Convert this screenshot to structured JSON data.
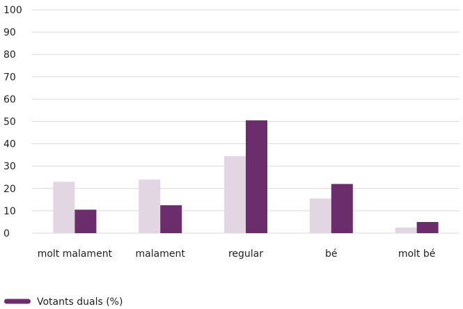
{
  "chart_data": {
    "type": "bar",
    "categories": [
      "molt malament",
      "malament",
      "regular",
      "bé",
      "molt bé"
    ],
    "series": [
      {
        "values": [
          23,
          24,
          34.5,
          15.5,
          2.5
        ],
        "color": "#e2d6e2"
      },
      {
        "name": "Votants duals (%)",
        "values": [
          10.5,
          12.5,
          50.5,
          22,
          5
        ],
        "color": "#6b2d6b"
      }
    ],
    "yticks": [
      0,
      10,
      20,
      30,
      40,
      50,
      60,
      70,
      80,
      90,
      100
    ],
    "ylim": [
      0,
      100
    ],
    "grid": true,
    "legend_placement": "bottom-left"
  }
}
